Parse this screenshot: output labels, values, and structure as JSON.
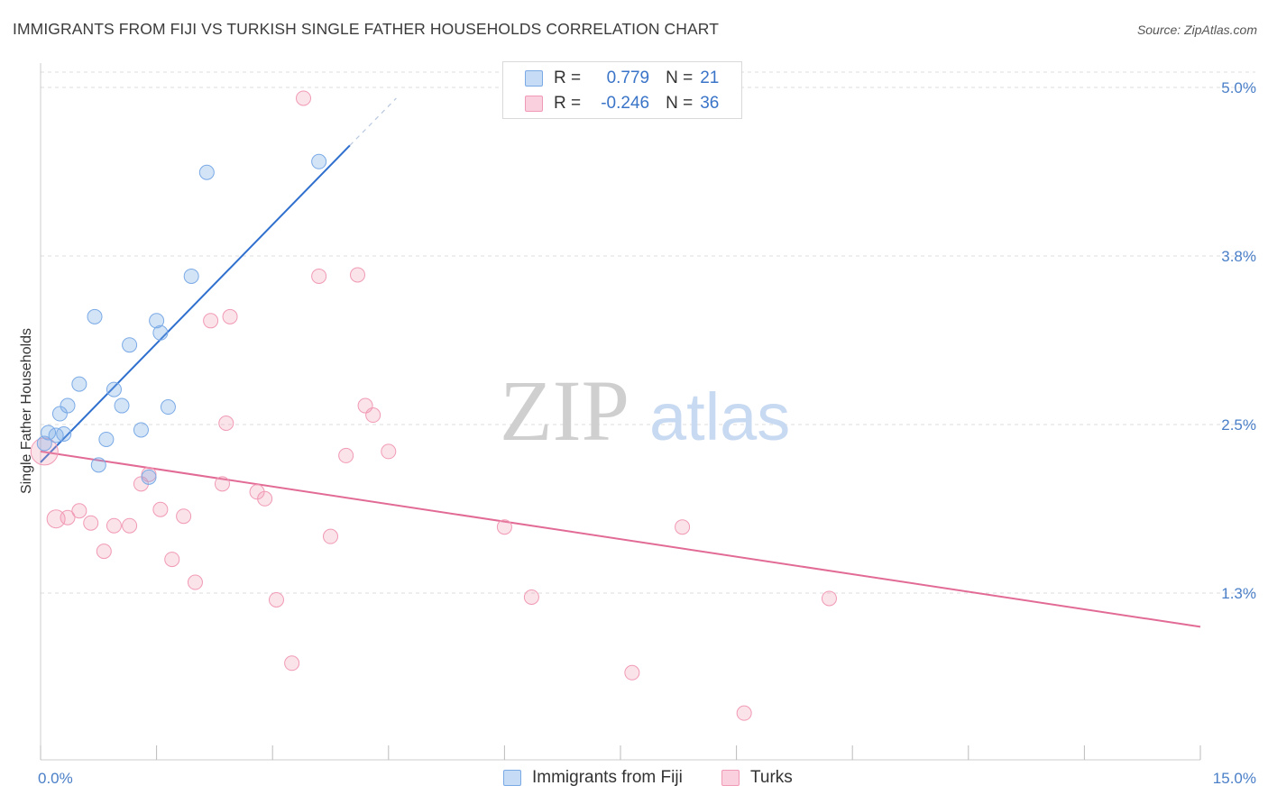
{
  "title": "IMMIGRANTS FROM FIJI VS TURKISH SINGLE FATHER HOUSEHOLDS CORRELATION CHART",
  "source": "Source: ZipAtlas.com",
  "watermark": {
    "zip": "ZIP",
    "atlas": "atlas"
  },
  "legend": {
    "rows": [
      {
        "r_label": "R =",
        "r_value": "0.779",
        "n_label": "N =",
        "n_value": "21"
      },
      {
        "r_label": "R =",
        "r_value": "-0.246",
        "n_label": "N =",
        "n_value": "36"
      }
    ]
  },
  "chart_data": {
    "type": "scatter",
    "title": "IMMIGRANTS FROM FIJI VS TURKISH SINGLE FATHER HOUSEHOLDS CORRELATION CHART",
    "xlabel": "",
    "ylabel": "Single Father Households",
    "xlim": [
      0,
      15
    ],
    "ylim": [
      0.0,
      5.0
    ],
    "x_tick_labels": [
      "0.0%",
      "15.0%"
    ],
    "y_ticks": [
      1.25,
      2.5,
      3.75,
      5.0
    ],
    "y_tick_labels": [
      "1.3%",
      "2.5%",
      "3.8%",
      "5.0%"
    ],
    "colors": {
      "fiji": "#7aaae6",
      "fiji_line": "#2f6fce",
      "turks": "#f19ab5",
      "turks_line": "#e26b96",
      "tick": "#4a7fc8",
      "grid": "#dddddd"
    },
    "series": [
      {
        "name": "Immigrants from Fiji",
        "color": "#7aaae6",
        "points": [
          [
            0.1,
            2.44
          ],
          [
            0.25,
            2.58
          ],
          [
            0.35,
            2.64
          ],
          [
            0.5,
            2.8
          ],
          [
            0.7,
            3.3
          ],
          [
            0.3,
            2.43
          ],
          [
            0.85,
            2.39
          ],
          [
            1.05,
            2.64
          ],
          [
            1.15,
            3.09
          ],
          [
            0.95,
            2.76
          ],
          [
            1.3,
            2.46
          ],
          [
            1.5,
            3.27
          ],
          [
            1.55,
            3.18
          ],
          [
            1.65,
            2.63
          ],
          [
            0.75,
            2.2
          ],
          [
            1.4,
            2.11
          ],
          [
            1.95,
            3.6
          ],
          [
            2.15,
            4.37
          ],
          [
            3.6,
            4.45
          ],
          [
            0.05,
            2.36
          ],
          [
            0.2,
            2.42
          ]
        ],
        "trend": {
          "x0": 0.0,
          "y0": 2.22,
          "x1": 4.0,
          "y1": 4.57,
          "dash_x1": 4.6,
          "dash_y1": 4.92
        }
      },
      {
        "name": "Turks",
        "color": "#f19ab5",
        "points": [
          [
            0.05,
            2.3
          ],
          [
            0.2,
            1.8
          ],
          [
            0.35,
            1.81
          ],
          [
            0.5,
            1.86
          ],
          [
            0.65,
            1.77
          ],
          [
            0.82,
            1.56
          ],
          [
            0.95,
            1.75
          ],
          [
            1.15,
            1.75
          ],
          [
            1.3,
            2.06
          ],
          [
            1.4,
            2.13
          ],
          [
            1.55,
            1.87
          ],
          [
            1.7,
            1.5
          ],
          [
            1.85,
            1.82
          ],
          [
            2.0,
            1.33
          ],
          [
            2.2,
            3.27
          ],
          [
            2.4,
            2.51
          ],
          [
            2.35,
            2.06
          ],
          [
            2.8,
            2.0
          ],
          [
            2.9,
            1.95
          ],
          [
            3.05,
            1.2
          ],
          [
            3.25,
            0.73
          ],
          [
            3.4,
            4.92
          ],
          [
            3.6,
            3.6
          ],
          [
            3.75,
            1.67
          ],
          [
            3.95,
            2.27
          ],
          [
            4.1,
            3.61
          ],
          [
            4.2,
            2.64
          ],
          [
            4.3,
            2.57
          ],
          [
            4.5,
            2.3
          ],
          [
            2.45,
            3.3
          ],
          [
            6.0,
            1.74
          ],
          [
            6.35,
            1.22
          ],
          [
            7.65,
            0.66
          ],
          [
            8.3,
            1.74
          ],
          [
            9.1,
            0.36
          ],
          [
            10.2,
            1.21
          ]
        ],
        "trend": {
          "x0": 0.0,
          "y0": 2.3,
          "x1": 15.0,
          "y1": 1.0
        }
      }
    ]
  }
}
